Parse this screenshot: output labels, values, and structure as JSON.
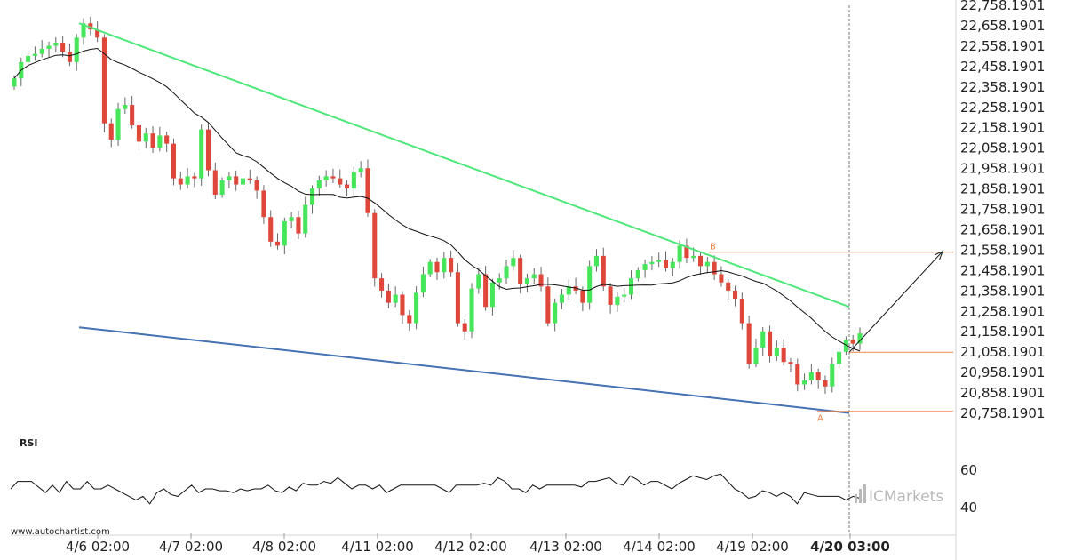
{
  "chart_data": {
    "type": "candlestick",
    "y_ticks": [
      "22,758.1901",
      "22,658.1901",
      "22,558.1901",
      "22,458.1901",
      "22,358.1901",
      "22,258.1901",
      "22,158.1901",
      "22,058.1901",
      "21,958.1901",
      "21,858.1901",
      "21,758.1901",
      "21,658.1901",
      "21,558.1901",
      "21,458.1901",
      "21,358.1901",
      "21,258.1901",
      "21,158.1901",
      "21,058.1901",
      "20,958.1901",
      "20,858.1901",
      "20,758.1901"
    ],
    "y_values": [
      22758.1901,
      22658.1901,
      22558.1901,
      22458.1901,
      22358.1901,
      22258.1901,
      22158.1901,
      22058.1901,
      21958.1901,
      21858.1901,
      21758.1901,
      21658.1901,
      21558.1901,
      21458.1901,
      21358.1901,
      21258.1901,
      21158.1901,
      21058.1901,
      20958.1901,
      20858.1901,
      20758.1901
    ],
    "x_ticks": [
      "4/6 02:00",
      "4/7 02:00",
      "4/8 02:00",
      "4/11 02:00",
      "4/12 02:00",
      "4/13 02:00",
      "4/14 02:00",
      "4/19 02:00",
      "4/20 03:00"
    ],
    "x_current": "4/20 03:00",
    "candle_closes": [
      22400,
      22480,
      22510,
      22520,
      22545,
      22560,
      22575,
      22530,
      22480,
      22600,
      22670,
      22640,
      22600,
      22180,
      22100,
      22250,
      22270,
      22170,
      22090,
      22130,
      22060,
      22120,
      22080,
      21910,
      21880,
      21920,
      21910,
      22150,
      21950,
      21830,
      21900,
      21920,
      21880,
      21910,
      21900,
      21850,
      21720,
      21600,
      21580,
      21700,
      21720,
      21640,
      21780,
      21860,
      21900,
      21920,
      21910,
      21880,
      21860,
      21940,
      21960,
      21740,
      21420,
      21360,
      21300,
      21340,
      21240,
      21200,
      21350,
      21440,
      21500,
      21450,
      21520,
      21450,
      21200,
      21160,
      21370,
      21440,
      21280,
      21400,
      21420,
      21480,
      21520,
      21390,
      21420,
      21440,
      21380,
      21200,
      21300,
      21340,
      21380,
      21360,
      21300,
      21480,
      21530,
      21380,
      21290,
      21330,
      21340,
      21420,
      21460,
      21490,
      21500,
      21510,
      21470,
      21500,
      21580,
      21520,
      21530,
      21480,
      21500,
      21440,
      21400,
      21360,
      21320,
      21200,
      21000,
      21080,
      21160,
      21040,
      21080,
      21010,
      21000,
      20900,
      20920,
      20960,
      20920,
      20890,
      21000,
      21060,
      21120,
      21100,
      21150
    ],
    "trend_upper_values": [
      22670,
      21280
    ],
    "trend_lower_values": [
      21180,
      20760
    ],
    "level_B": 21548,
    "level_A": 20768,
    "level_current": 21058,
    "projection_target": 21552,
    "point_labels": {
      "A": "A",
      "B": "B"
    },
    "rsi_label": "RSI",
    "rsi_ticks": [
      "60",
      "40"
    ],
    "rsi_tick_values": [
      60,
      40
    ],
    "rsi_values": [
      50,
      54,
      54,
      54,
      51,
      48,
      52,
      48,
      54,
      50,
      50,
      54,
      50,
      50,
      52,
      50,
      48,
      46,
      44,
      46,
      42,
      48,
      50,
      47,
      46,
      49,
      52,
      48,
      50,
      50,
      49,
      49,
      48,
      50,
      49,
      50,
      50,
      52,
      49,
      48,
      51,
      49,
      53,
      52,
      52,
      54,
      53,
      56,
      53,
      50,
      52,
      52,
      50,
      52,
      48,
      50,
      52,
      52,
      52,
      52,
      52,
      52,
      50,
      48,
      52,
      52,
      52,
      52,
      53,
      52,
      56,
      54,
      50,
      50,
      48,
      52,
      50,
      52,
      52,
      52,
      52,
      52,
      51,
      54,
      54,
      55,
      56,
      53,
      52,
      57,
      55,
      52,
      54,
      54,
      52,
      50,
      53,
      55,
      57,
      56,
      55,
      57,
      58,
      54,
      50,
      48,
      45,
      46,
      49,
      48,
      46,
      48,
      46,
      42,
      48,
      47,
      46,
      46,
      46,
      46,
      44,
      46,
      45
    ]
  },
  "watermark": "www.autochartist.com",
  "brand": {
    "prefix": "IC",
    "name": "Markets"
  },
  "colors": {
    "bull": "#46e65a",
    "bear": "#e0473b",
    "upper_trend": "#4ee87a",
    "lower_trend": "#4573b4",
    "levels": "#e8864a",
    "ma": "#111111",
    "projection": "#111111"
  }
}
